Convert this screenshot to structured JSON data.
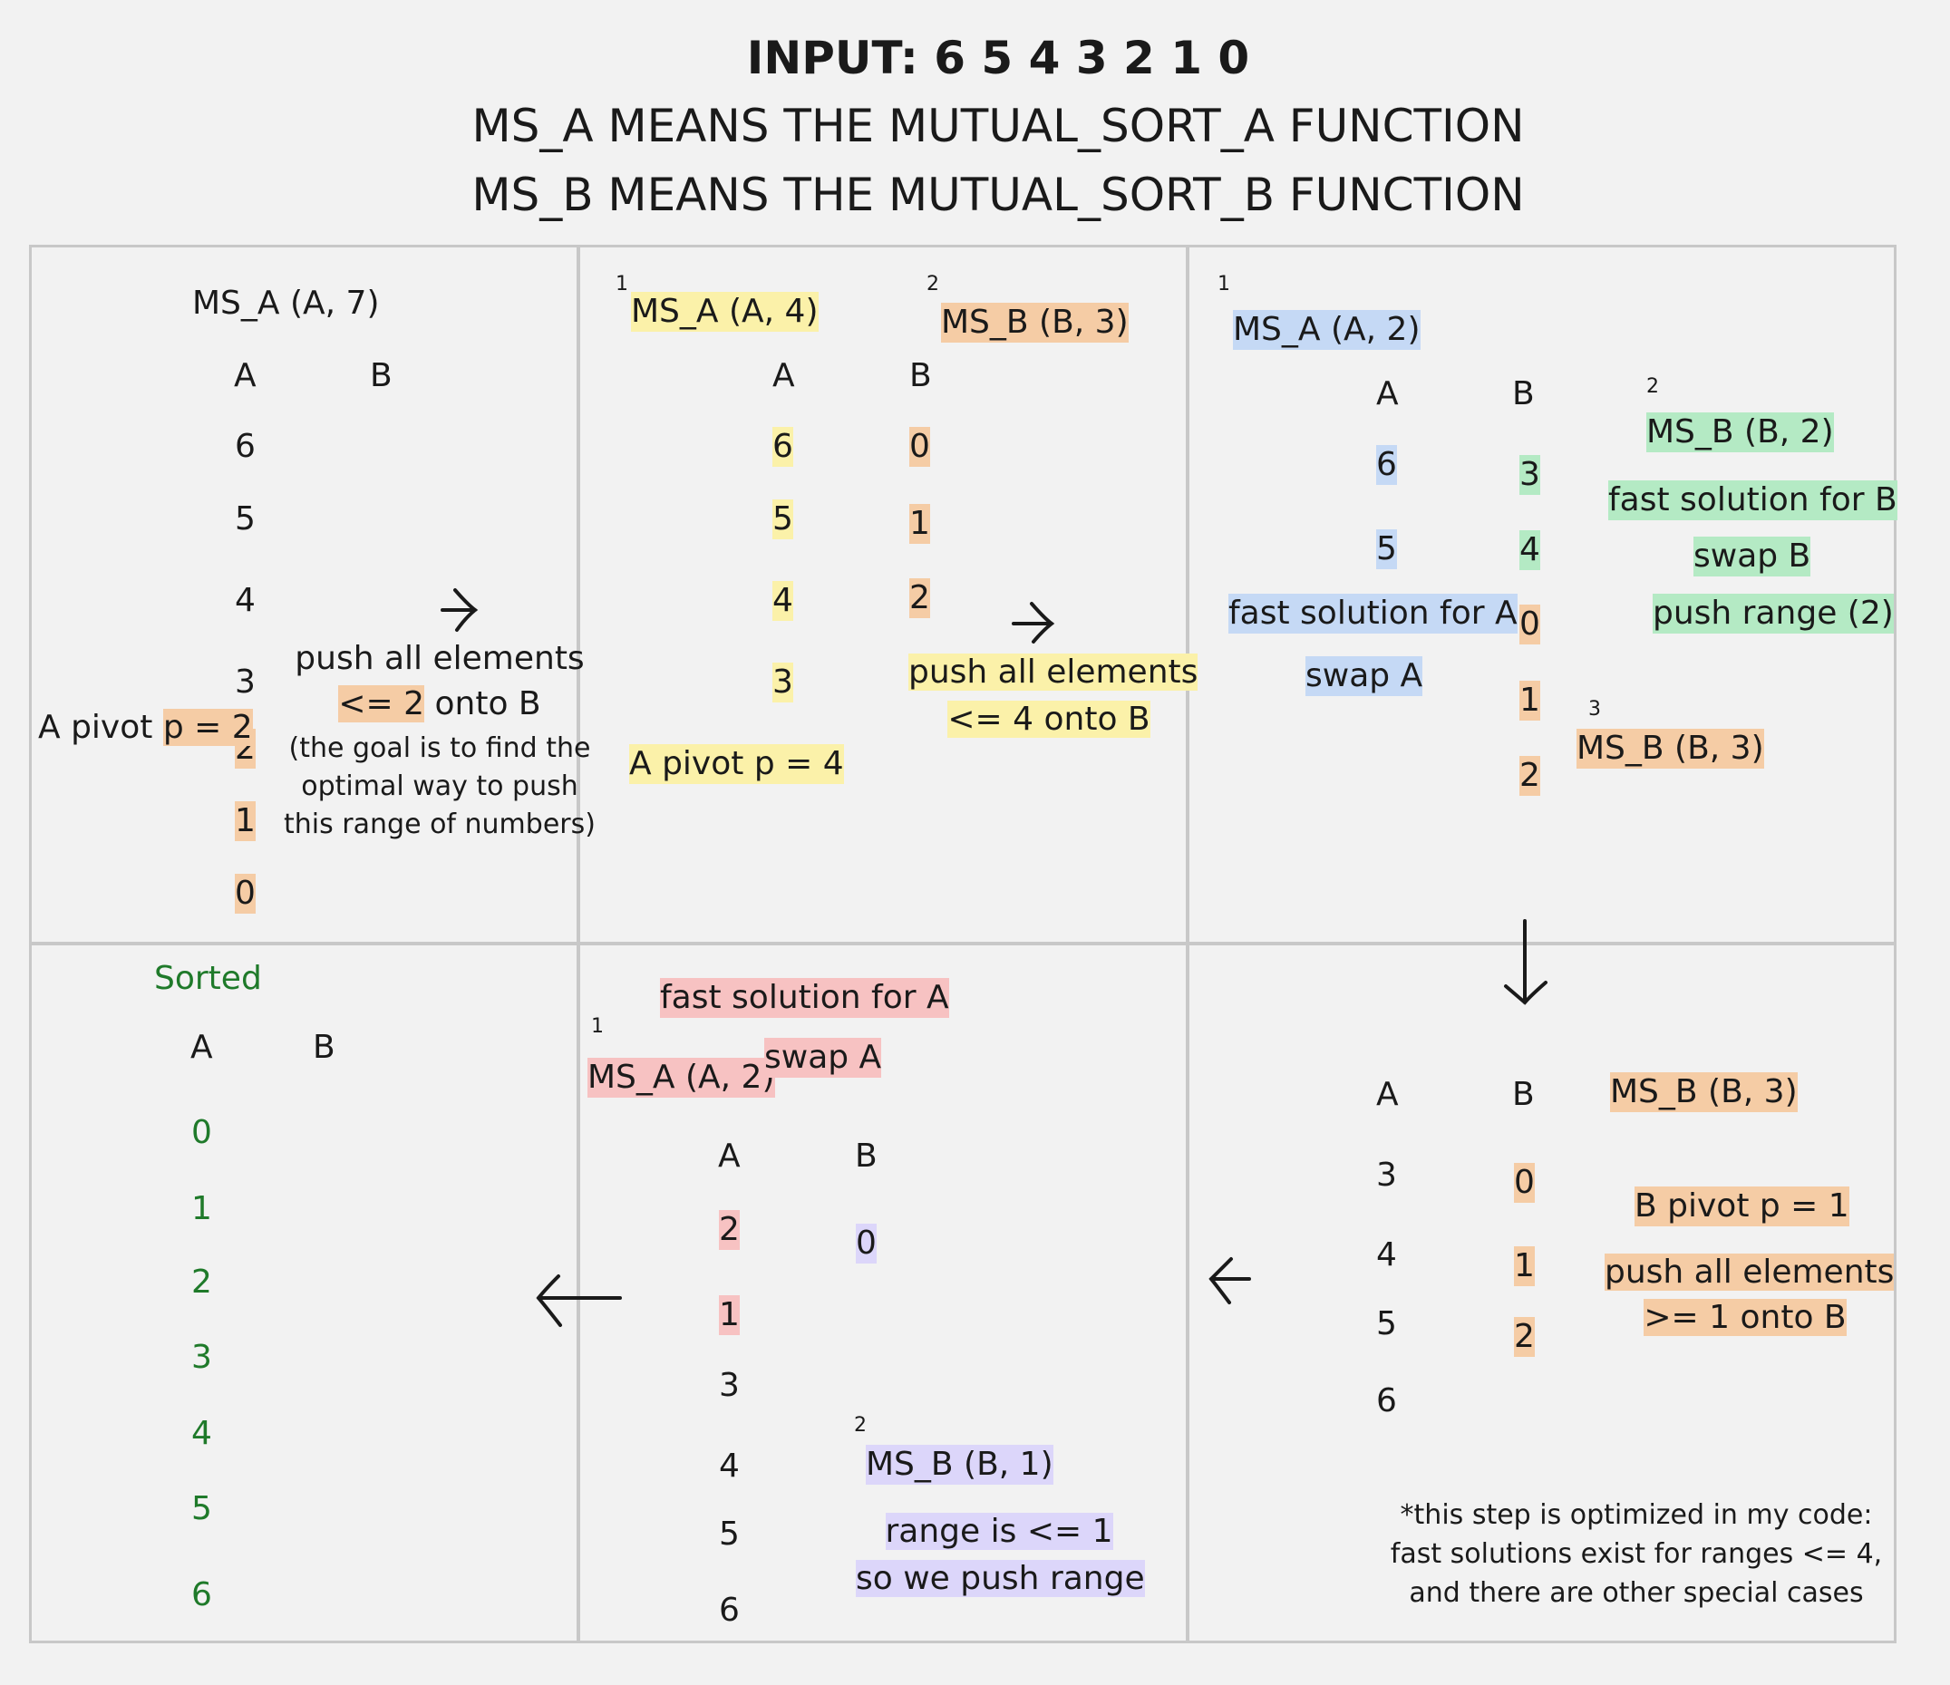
{
  "header": {
    "title": "INPUT: 6 5 4 3 2 1 0",
    "line1": "MS_A MEANS THE MUTUAL_SORT_A FUNCTION",
    "line2": "MS_B MEANS THE MUTUAL_SORT_B FUNCTION"
  },
  "panel1": {
    "call": "MS_A (A, 7)",
    "col_a": "A",
    "col_b": "B",
    "a_values": [
      "6",
      "5",
      "4",
      "3",
      "2",
      "1",
      "0"
    ],
    "pivot_label": "A pivot ",
    "pivot_value": "p = 2",
    "push_line1": "push all elements",
    "push_hl": "<= 2",
    "push_rest": " onto B",
    "note_line1": "(the goal is to find the",
    "note_line2": "optimal way to push",
    "note_line3": "this range of numbers)"
  },
  "panel2": {
    "step1": "1",
    "call_a": "MS_A (A, 4)",
    "step2": "2",
    "call_b": "MS_B (B, 3)",
    "col_a": "A",
    "col_b": "B",
    "a_values": [
      "6",
      "5",
      "4",
      "3"
    ],
    "b_values": [
      "0",
      "1",
      "2"
    ],
    "pivot": "A pivot p = 4",
    "push_line1": "push all elements",
    "push_line2": "<= 4 onto B"
  },
  "panel3": {
    "step1": "1",
    "call_a": "MS_A (A, 2)",
    "col_a": "A",
    "col_b": "B",
    "a_values": [
      "6",
      "5"
    ],
    "b_values": [
      "3",
      "4",
      "0",
      "1",
      "2"
    ],
    "fast_a": "fast solution for A",
    "swap_a": "swap A",
    "step2": "2",
    "call_b2": "MS_B (B, 2)",
    "fast_b": "fast solution for B",
    "swap_b": "swap B",
    "push_range": "push range (2)",
    "step3": "3",
    "call_b3": "MS_B (B, 3)"
  },
  "panel4": {
    "sorted": "Sorted",
    "col_a": "A",
    "col_b": "B",
    "a_values": [
      "0",
      "1",
      "2",
      "3",
      "4",
      "5",
      "6"
    ]
  },
  "panel5": {
    "fast_a": "fast solution for A",
    "step1": "1",
    "call_a": "MS_A (A, 2)",
    "swap_a": "swap A",
    "col_a": "A",
    "col_b": "B",
    "a_values": [
      "2",
      "1",
      "3",
      "4",
      "5",
      "6"
    ],
    "b_values": [
      "0"
    ],
    "step2": "2",
    "call_b": "MS_B (B, 1)",
    "range_line1": "range is <= 1",
    "range_line2": "so we push range"
  },
  "panel6": {
    "col_a": "A",
    "col_b": "B",
    "call_b": "MS_B (B, 3)",
    "a_values": [
      "3",
      "4",
      "5",
      "6"
    ],
    "b_values": [
      "0",
      "1",
      "2"
    ],
    "pivot": "B pivot p = 1",
    "push_line1": "push all elements",
    "push_line2": ">= 1 onto B",
    "note_line1": "*this step is optimized in my code:",
    "note_line2": "fast solutions exist for ranges <= 4,",
    "note_line3": "and there are other special cases"
  },
  "colors": {
    "yellow": "#fbf1a9",
    "orange": "#f5cca5",
    "blue": "#c5d9f5",
    "green": "#b4eac4",
    "red": "#f7c2c2",
    "purple": "#dcd6fa",
    "sorted_text": "#1f7a2a"
  },
  "icons": [
    "arrow-right-icon",
    "arrow-down-icon",
    "arrow-left-icon"
  ]
}
